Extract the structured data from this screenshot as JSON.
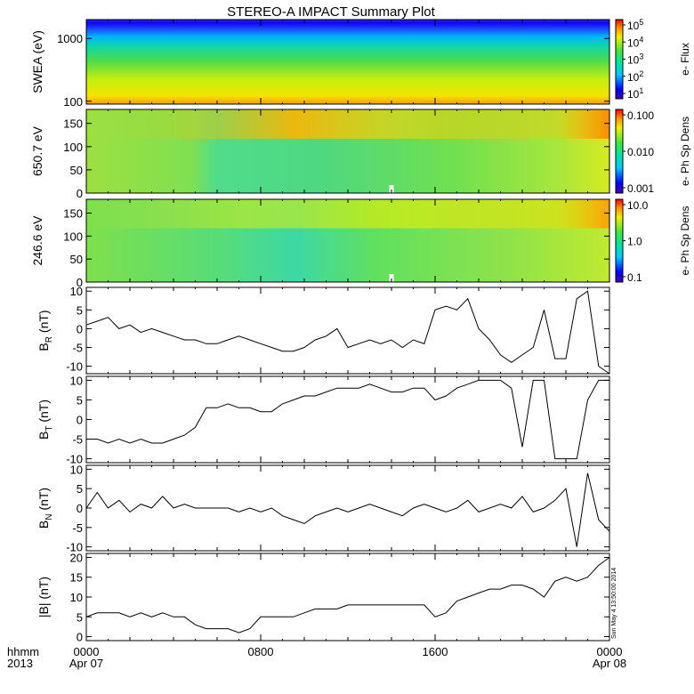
{
  "title": "STEREO-A IMPACT Summary Plot",
  "stamp": "Sun May  4 13:50:00 2014",
  "footer": {
    "left_top": "hhmm",
    "left_bottom": "2013",
    "x_ticks": [
      {
        "label": "0000",
        "sub": "Apr 07",
        "hour": 0
      },
      {
        "label": "0800",
        "sub": "",
        "hour": 8
      },
      {
        "label": "1600",
        "sub": "",
        "hour": 16
      },
      {
        "label": "0000",
        "sub": "Apr 08",
        "hour": 24
      }
    ]
  },
  "colors": {
    "trace": "#000000",
    "frame": "#000000"
  },
  "chart_data": [
    {
      "type": "heatmap",
      "ylabel": "SWEA (eV)",
      "yscale": "log",
      "ylim": [
        90,
        2000
      ],
      "yticks": [
        {
          "v": 100,
          "label": "100"
        },
        {
          "v": 1000,
          "label": "1000"
        }
      ],
      "x_hours": [
        0,
        24
      ],
      "colorbar": {
        "label": "e- Flux",
        "scale": "log",
        "ticks": [
          {
            "base": "10",
            "exp": "5"
          },
          {
            "base": "10",
            "exp": "4"
          },
          {
            "base": "10",
            "exp": "3"
          },
          {
            "base": "10",
            "exp": "2"
          },
          {
            "base": "10",
            "exp": "1"
          }
        ]
      }
    },
    {
      "type": "heatmap",
      "ylabel": "650.7 eV",
      "ylim": [
        0,
        180
      ],
      "yticks": [
        {
          "v": 0,
          "label": "0"
        },
        {
          "v": 50,
          "label": "50"
        },
        {
          "v": 100,
          "label": "100"
        },
        {
          "v": 150,
          "label": "150"
        }
      ],
      "x_hours": [
        0,
        24
      ],
      "colorbar": {
        "label": "e- Ph Sp Dens",
        "scale": "log",
        "ticks": [
          {
            "label": "0.100"
          },
          {
            "label": "0.010"
          },
          {
            "label": "0.001"
          }
        ]
      }
    },
    {
      "type": "heatmap",
      "ylabel": "246.6 eV",
      "ylim": [
        0,
        180
      ],
      "yticks": [
        {
          "v": 0,
          "label": "0"
        },
        {
          "v": 50,
          "label": "50"
        },
        {
          "v": 100,
          "label": "100"
        },
        {
          "v": 150,
          "label": "150"
        }
      ],
      "x_hours": [
        0,
        24
      ],
      "colorbar": {
        "label": "e- Ph Sp Dens",
        "scale": "log",
        "ticks": [
          {
            "label": "10.0"
          },
          {
            "label": "1.0"
          },
          {
            "label": "0.1"
          }
        ]
      }
    },
    {
      "type": "line",
      "ylabel_main": "B",
      "ylabel_sub": "R",
      "ylabel_unit": " (nT)",
      "ylim": [
        -12,
        11
      ],
      "yticks": [
        -10,
        -5,
        0,
        5,
        10
      ],
      "x": [
        0,
        0.5,
        1,
        1.5,
        2,
        2.5,
        3,
        3.5,
        4,
        4.5,
        5,
        5.5,
        6,
        6.5,
        7,
        7.5,
        8,
        8.5,
        9,
        9.5,
        10,
        10.5,
        11,
        11.5,
        12,
        12.5,
        13,
        13.5,
        14,
        14.5,
        15,
        15.5,
        16,
        16.5,
        17,
        17.5,
        18,
        18.5,
        19,
        19.5,
        20,
        20.5,
        21,
        21.5,
        22,
        22.5,
        23,
        23.5
      ],
      "y": [
        1,
        2,
        3,
        0,
        1,
        -1,
        0,
        -1,
        -2,
        -3,
        -3,
        -4,
        -4,
        -3,
        -2,
        -3,
        -4,
        -5,
        -6,
        -6,
        -5,
        -3,
        -2,
        0,
        -5,
        -4,
        -3,
        -4,
        -3,
        -5,
        -3,
        -4,
        5,
        6,
        5,
        8,
        0,
        -3,
        -7,
        -9,
        -7,
        -5,
        5,
        -8,
        -8,
        8,
        10,
        -10
      ],
      "x_end": 24,
      "y_end": -12
    },
    {
      "type": "line",
      "ylabel_main": "B",
      "ylabel_sub": "T",
      "ylabel_unit": " (nT)",
      "ylim": [
        -11,
        11
      ],
      "yticks": [
        -10,
        -5,
        0,
        5,
        10
      ],
      "x": [
        0,
        0.5,
        1,
        1.5,
        2,
        2.5,
        3,
        3.5,
        4,
        4.5,
        5,
        5.5,
        6,
        6.5,
        7,
        7.5,
        8,
        8.5,
        9,
        9.5,
        10,
        10.5,
        11,
        11.5,
        12,
        12.5,
        13,
        13.5,
        14,
        14.5,
        15,
        15.5,
        16,
        16.5,
        17,
        17.5,
        18,
        18.5,
        19,
        19.5,
        20,
        20.5,
        21,
        21.5,
        22,
        22.5,
        23,
        23.5
      ],
      "y": [
        -5,
        -5,
        -6,
        -5,
        -6,
        -5,
        -6,
        -6,
        -5,
        -4,
        -2,
        3,
        3,
        4,
        3,
        3,
        2,
        2,
        4,
        5,
        6,
        6,
        7,
        8,
        8,
        8,
        9,
        8,
        7,
        7,
        8,
        8,
        5,
        6,
        8,
        9,
        10,
        10,
        10,
        8,
        -7,
        10,
        10,
        -10,
        -10,
        -10,
        5,
        10
      ],
      "x_end": 24,
      "y_end": 10
    },
    {
      "type": "line",
      "ylabel_main": "B",
      "ylabel_sub": "N",
      "ylabel_unit": " (nT)",
      "ylim": [
        -11,
        11
      ],
      "yticks": [
        -10,
        -5,
        0,
        5,
        10
      ],
      "x": [
        0,
        0.5,
        1,
        1.5,
        2,
        2.5,
        3,
        3.5,
        4,
        4.5,
        5,
        5.5,
        6,
        6.5,
        7,
        7.5,
        8,
        8.5,
        9,
        9.5,
        10,
        10.5,
        11,
        11.5,
        12,
        12.5,
        13,
        13.5,
        14,
        14.5,
        15,
        15.5,
        16,
        16.5,
        17,
        17.5,
        18,
        18.5,
        19,
        19.5,
        20,
        20.5,
        21,
        21.5,
        22,
        22.5,
        23,
        23.5
      ],
      "y": [
        0,
        4,
        0,
        2,
        -1,
        1,
        0,
        3,
        0,
        1,
        0,
        0,
        0,
        0,
        -1,
        0,
        -1,
        0,
        -2,
        -3,
        -4,
        -2,
        -1,
        0,
        -1,
        0,
        1,
        0,
        -1,
        -2,
        0,
        1,
        0,
        -1,
        0,
        2,
        -1,
        0,
        1,
        0,
        3,
        -1,
        0,
        2,
        5,
        -10,
        9,
        -3
      ],
      "x_end": 24,
      "y_end": -6
    },
    {
      "type": "line",
      "ylabel_main": "|B|",
      "ylabel_sub": "",
      "ylabel_unit": " (nT)",
      "ylim": [
        -1,
        21
      ],
      "yticks": [
        0,
        5,
        10,
        15,
        20
      ],
      "x": [
        0,
        0.5,
        1,
        1.5,
        2,
        2.5,
        3,
        3.5,
        4,
        4.5,
        5,
        5.5,
        6,
        6.5,
        7,
        7.5,
        8,
        8.5,
        9,
        9.5,
        10,
        10.5,
        11,
        11.5,
        12,
        12.5,
        13,
        13.5,
        14,
        14.5,
        15,
        15.5,
        16,
        16.5,
        17,
        17.5,
        18,
        18.5,
        19,
        19.5,
        20,
        20.5,
        21,
        21.5,
        22,
        22.5,
        23,
        23.5
      ],
      "y": [
        5,
        6,
        6,
        6,
        5,
        6,
        5,
        6,
        5,
        5,
        3,
        2,
        2,
        2,
        1,
        2,
        5,
        5,
        5,
        5,
        6,
        7,
        7,
        7,
        8,
        8,
        8,
        8,
        8,
        8,
        8,
        8,
        5,
        6,
        9,
        10,
        11,
        12,
        12,
        13,
        13,
        12,
        10,
        14,
        15,
        14,
        15,
        18
      ],
      "x_end": 24,
      "y_end": 20
    }
  ]
}
